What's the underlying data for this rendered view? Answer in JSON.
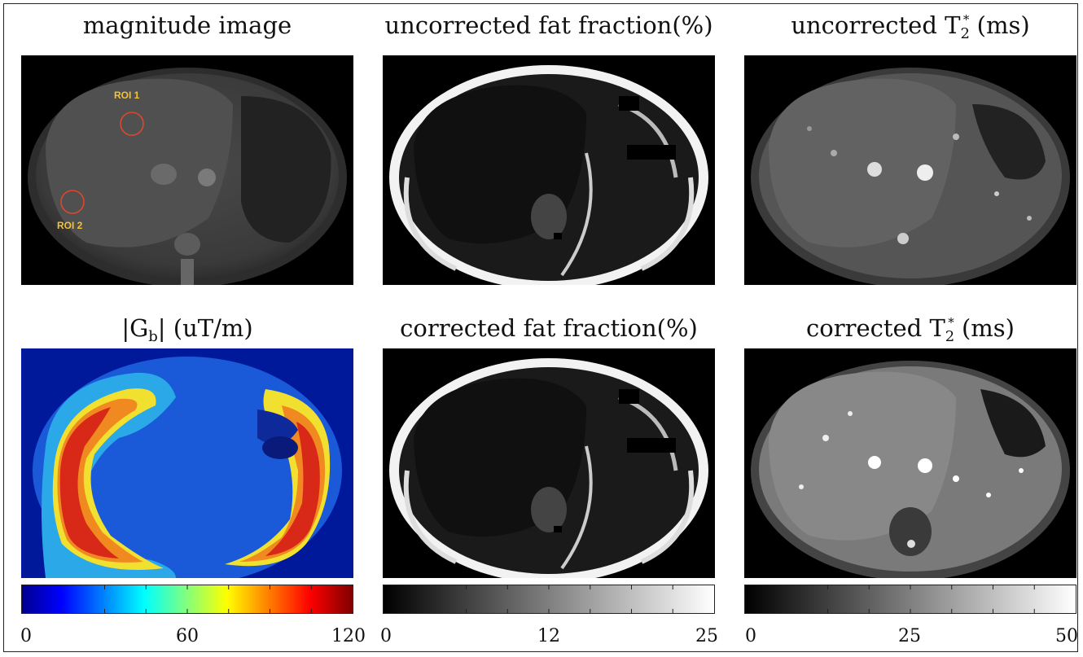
{
  "panels": [
    {
      "id": "magnitude",
      "title": "magnitude image",
      "rois": [
        "ROI 1",
        "ROI 2"
      ]
    },
    {
      "id": "uncorrected-ff",
      "title": "uncorrected fat fraction(%)"
    },
    {
      "id": "uncorrected-t2",
      "title_pre": "uncorrected T",
      "title_sub": "2",
      "title_sup": "*",
      "title_post": " (ms)"
    },
    {
      "id": "gb",
      "title_pre": "|G",
      "title_sub": "b",
      "title_post": "|  (uT/m)"
    },
    {
      "id": "corrected-ff",
      "title": "corrected fat fraction(%)"
    },
    {
      "id": "corrected-t2",
      "title_pre": "corrected T",
      "title_sub": "2",
      "title_sup": "*",
      "title_post": " (ms)"
    }
  ],
  "colorbars": [
    {
      "id": "jet",
      "ticks": [
        "0",
        "60",
        "120"
      ],
      "colormap": "jet"
    },
    {
      "id": "gray-ff",
      "ticks": [
        "0",
        "12",
        "25"
      ],
      "colormap": "gray"
    },
    {
      "id": "gray-t2",
      "ticks": [
        "0",
        "25",
        "50"
      ],
      "colormap": "gray"
    }
  ],
  "colors": {
    "roi": "#e0462c",
    "roi_label": "#f2c23a"
  }
}
